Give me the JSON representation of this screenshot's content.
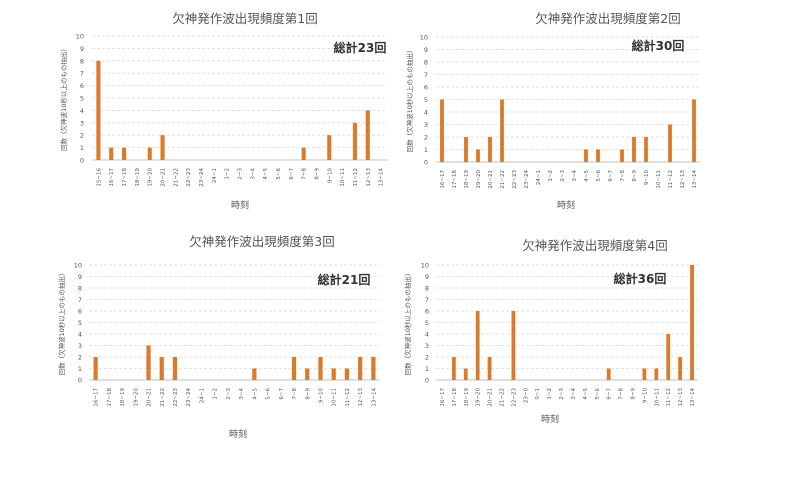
{
  "colors": {
    "bar": "#d97b2b",
    "grid": "#d9d9d9",
    "axis": "#bfbfbf",
    "text": "#555555"
  },
  "chart_data": [
    {
      "type": "bar",
      "title": "欠神発作波出現頻度第1回",
      "total": "総計23回",
      "xlabel": "時刻",
      "ylabel": "回数（欠神波10秒以上のもの抽出）",
      "ylim": [
        0,
        10
      ],
      "yticks": [
        0,
        1,
        2,
        3,
        4,
        5,
        6,
        7,
        8,
        9,
        10
      ],
      "grid": true,
      "categories": [
        "15~16",
        "16~17",
        "17~18",
        "18~19",
        "19~20",
        "20~21",
        "21~22",
        "22~23",
        "23~24",
        "24~1",
        "1~2",
        "2~3",
        "3~4",
        "4~5",
        "5~6",
        "6~7",
        "7~8",
        "8~9",
        "9~10",
        "10~11",
        "11~12",
        "12~13",
        "13~14"
      ],
      "values": [
        8,
        1,
        1,
        0,
        1,
        2,
        0,
        0,
        0,
        0,
        0,
        0,
        0,
        0,
        0,
        0,
        1,
        0,
        2,
        0,
        3,
        4,
        0
      ]
    },
    {
      "type": "bar",
      "title": "欠神発作波出現頻度第2回",
      "total": "総計30回",
      "xlabel": "時刻",
      "ylabel": "回数（欠神波10秒以上のもの抽出）",
      "ylim": [
        0,
        10
      ],
      "yticks": [
        0,
        1,
        2,
        3,
        4,
        5,
        6,
        7,
        8,
        9,
        10
      ],
      "grid": true,
      "categories": [
        "16~17",
        "17~18",
        "18~19",
        "19~20",
        "20~21",
        "21~22",
        "22~23",
        "23~24",
        "24~1",
        "1~2",
        "2~3",
        "3~4",
        "4~5",
        "5~6",
        "6~7",
        "7~8",
        "8~9",
        "9~10",
        "10~11",
        "11~12",
        "12~13",
        "13~14"
      ],
      "values": [
        5,
        0,
        2,
        1,
        2,
        5,
        0,
        0,
        0,
        0,
        0,
        0,
        1,
        1,
        0,
        1,
        2,
        2,
        0,
        3,
        0,
        5
      ]
    },
    {
      "type": "bar",
      "title": "欠神発作波出現頻度第3回",
      "total": "総計21回",
      "xlabel": "時刻",
      "ylabel": "回数（欠神波10秒以上のもの抽出）",
      "ylim": [
        0,
        10
      ],
      "yticks": [
        0,
        1,
        2,
        3,
        4,
        5,
        6,
        7,
        8,
        9,
        10
      ],
      "grid": true,
      "categories": [
        "16~17",
        "17~18",
        "18~19",
        "19~20",
        "20~21",
        "21~22",
        "22~23",
        "23~24",
        "24~1",
        "1~2",
        "2~3",
        "3~4",
        "4~5",
        "5~6",
        "6~7",
        "7~8",
        "8~9",
        "9~10",
        "10~11",
        "11~12",
        "12~13",
        "13~14"
      ],
      "values": [
        2,
        0,
        0,
        0,
        3,
        2,
        2,
        0,
        0,
        0,
        0,
        0,
        1,
        0,
        0,
        2,
        1,
        2,
        1,
        1,
        2,
        2
      ]
    },
    {
      "type": "bar",
      "title": "欠神発作波出現頻度第4回",
      "total": "総計36回",
      "xlabel": "時刻",
      "ylabel": "回数（欠神波10秒以上のもの抽出）",
      "ylim": [
        0,
        10
      ],
      "yticks": [
        0,
        1,
        2,
        3,
        4,
        5,
        6,
        7,
        8,
        9,
        10
      ],
      "grid": true,
      "categories": [
        "16~17",
        "17~18",
        "18~19",
        "19~20",
        "20~21",
        "21~22",
        "22~23",
        "23~0",
        "0~1",
        "1~2",
        "2~3",
        "3~4",
        "4~5",
        "5~6",
        "6~7",
        "7~8",
        "8~9",
        "9~10",
        "10~11",
        "11~12",
        "12~13",
        "13~14"
      ],
      "values": [
        0,
        2,
        1,
        6,
        2,
        0,
        6,
        0,
        0,
        0,
        0,
        0,
        0,
        0,
        1,
        0,
        0,
        1,
        1,
        4,
        2,
        10
      ]
    }
  ]
}
